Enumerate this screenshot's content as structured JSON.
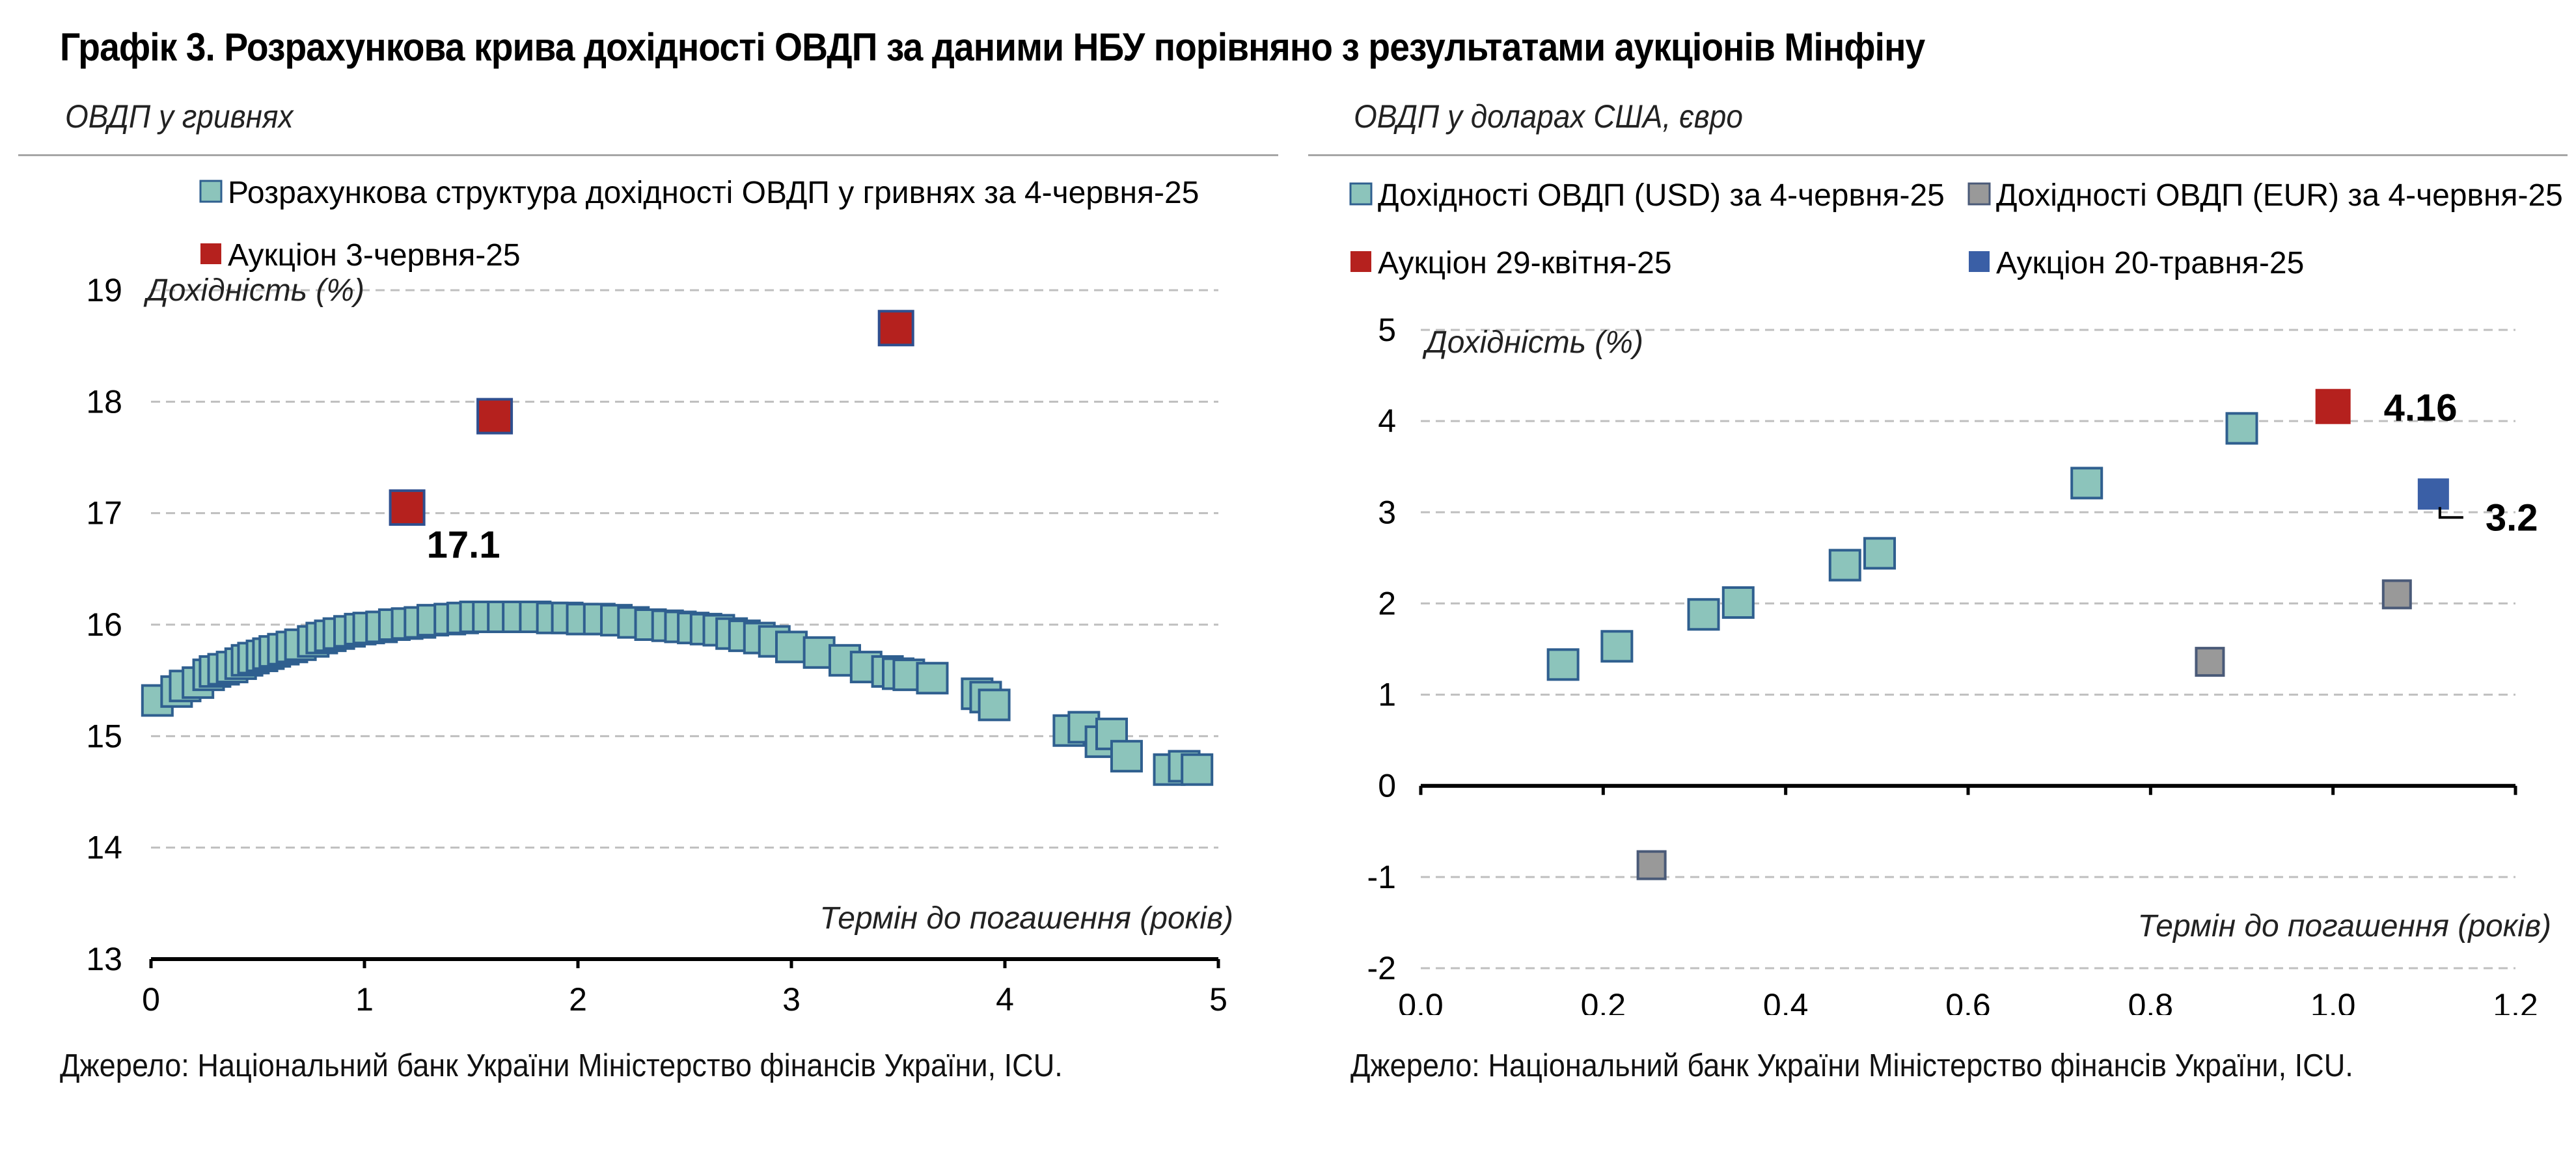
{
  "title": "Графік 3. Розрахункова крива дохідності ОВДП за даними НБУ порівняно з результатами аукціонів Мінфіну",
  "left": {
    "subtitle": "ОВДП у гривнях",
    "source": "Джерело: Національний банк України Міністерство фінансів України, ICU."
  },
  "right": {
    "subtitle": "ОВДП у доларах США, євро",
    "source": "Джерело: Національний банк України Міністерство фінансів України, ICU."
  },
  "colors": {
    "teal": "#8cc4bb",
    "teal_border": "#2f5f8f",
    "red": "#b5211e",
    "blue": "#3a5fa6",
    "gray": "#999999",
    "grid": "#bfbfbf"
  },
  "chart_data": [
    {
      "type": "scatter",
      "ylabel": "Дохідність (%)",
      "xlabel": "Термін до погашення (років)",
      "xlim": [
        0,
        5
      ],
      "ylim": [
        13,
        19
      ],
      "xticks": [
        "0",
        "1",
        "2",
        "3",
        "4",
        "5"
      ],
      "yticks": [
        "13",
        "14",
        "15",
        "16",
        "17",
        "18",
        "19"
      ],
      "grid": true,
      "legend_position": "top",
      "series": [
        {
          "name": "Розрахункова структура дохідності ОВДП у гривнях за 4-червня-25",
          "color": "#8cc4bb",
          "x": [
            0.03,
            0.12,
            0.16,
            0.22,
            0.27,
            0.3,
            0.34,
            0.38,
            0.42,
            0.45,
            0.48,
            0.52,
            0.55,
            0.58,
            0.62,
            0.66,
            0.7,
            0.76,
            0.8,
            0.84,
            0.88,
            0.93,
            0.98,
            1.02,
            1.08,
            1.14,
            1.2,
            1.26,
            1.32,
            1.4,
            1.46,
            1.52,
            1.58,
            1.65,
            1.72,
            1.8,
            1.88,
            1.95,
            2.02,
            2.1,
            2.18,
            2.26,
            2.34,
            2.42,
            2.48,
            2.54,
            2.6,
            2.66,
            2.72,
            2.78,
            2.85,
            2.92,
            3.0,
            3.13,
            3.25,
            3.35,
            3.45,
            3.5,
            3.55,
            3.66,
            3.87,
            3.91,
            3.95,
            4.3,
            4.37,
            4.45,
            4.5,
            4.57,
            4.77,
            4.84,
            4.9
          ],
          "y": [
            15.32,
            15.4,
            15.45,
            15.48,
            15.55,
            15.58,
            15.6,
            15.62,
            15.65,
            15.68,
            15.7,
            15.72,
            15.74,
            15.76,
            15.78,
            15.8,
            15.82,
            15.85,
            15.88,
            15.9,
            15.92,
            15.94,
            15.96,
            15.97,
            15.98,
            16.0,
            16.01,
            16.02,
            16.04,
            16.05,
            16.06,
            16.07,
            16.07,
            16.07,
            16.07,
            16.07,
            16.06,
            16.06,
            16.05,
            16.05,
            16.04,
            16.02,
            16.0,
            15.99,
            15.98,
            15.97,
            15.96,
            15.95,
            15.92,
            15.9,
            15.88,
            15.85,
            15.8,
            15.75,
            15.68,
            15.62,
            15.58,
            15.56,
            15.55,
            15.52,
            15.38,
            15.35,
            15.28,
            15.05,
            15.08,
            14.95,
            15.02,
            14.82,
            14.7,
            14.73,
            14.7
          ]
        },
        {
          "name": "Аукціон 3-червня-25",
          "color": "#b5211e",
          "x": [
            1.2,
            1.61,
            3.49
          ],
          "y": [
            17.05,
            17.87,
            18.66
          ],
          "labels": [
            "17.1",
            "",
            ""
          ]
        }
      ]
    },
    {
      "type": "scatter",
      "ylabel": "Дохідність (%)",
      "xlabel": "Термін до погашення (років)",
      "xlim": [
        0,
        1.2
      ],
      "ylim": [
        -2,
        5
      ],
      "xticks": [
        "0.0",
        "0.2",
        "0.4",
        "0.6",
        "0.8",
        "1.0",
        "1.2"
      ],
      "yticks": [
        "-2",
        "-1",
        "0",
        "1",
        "2",
        "3",
        "4",
        "5"
      ],
      "grid": true,
      "legend_position": "top",
      "series": [
        {
          "name": "Дохідності ОВДП (USD) за 4-червня-25",
          "color": "#8cc4bb",
          "x": [
            0.156,
            0.215,
            0.31,
            0.348,
            0.465,
            0.503,
            0.73,
            0.9
          ],
          "y": [
            1.33,
            1.53,
            1.88,
            2.01,
            2.42,
            2.55,
            3.32,
            3.92
          ]
        },
        {
          "name": "Дохідності ОВДП (EUR) за 4-червня-25",
          "color": "#999999",
          "x": [
            0.253,
            0.865,
            1.07
          ],
          "y": [
            -0.87,
            1.36,
            2.1
          ]
        },
        {
          "name": "Аукціон 29-квітня-25",
          "color": "#b5211e",
          "x": [
            1.0
          ],
          "y": [
            4.16
          ],
          "labels": [
            "4.16"
          ]
        },
        {
          "name": "Аукціон 20-травня-25",
          "color": "#3a5fa6",
          "x": [
            1.11
          ],
          "y": [
            3.2
          ],
          "labels": [
            "3.2"
          ]
        }
      ]
    }
  ]
}
